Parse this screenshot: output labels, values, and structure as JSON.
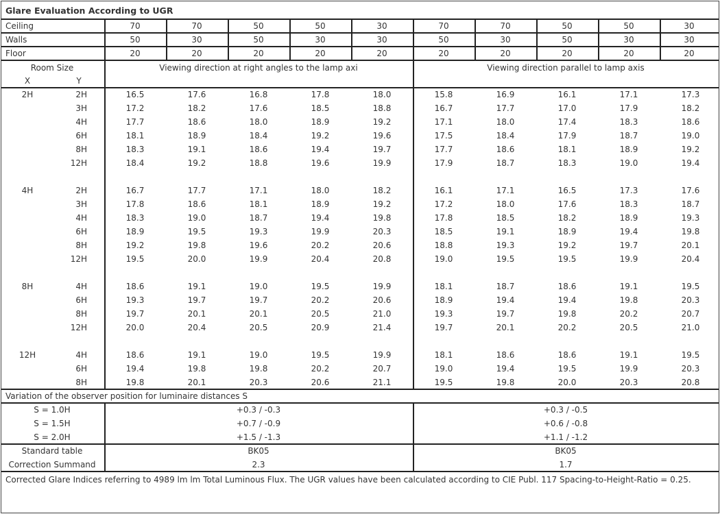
{
  "title": "Glare Evaluation According to UGR",
  "reflectances": {
    "ceiling": {
      "label": "Ceiling",
      "values": [
        "70",
        "70",
        "50",
        "50",
        "30",
        "70",
        "70",
        "50",
        "50",
        "30"
      ]
    },
    "walls": {
      "label": "Walls",
      "values": [
        "50",
        "30",
        "50",
        "30",
        "30",
        "50",
        "30",
        "50",
        "30",
        "30"
      ]
    },
    "floor": {
      "label": "Floor",
      "values": [
        "20",
        "20",
        "20",
        "20",
        "20",
        "20",
        "20",
        "20",
        "20",
        "20"
      ]
    }
  },
  "header": {
    "room_size": "Room Size",
    "x": "X",
    "y": "Y",
    "perpendicular": "Viewing direction at right angles to the lamp axi",
    "parallel": "Viewing direction parallel to lamp axis"
  },
  "groups": [
    {
      "x": "2H",
      "rows": [
        {
          "y": "2H",
          "perp": [
            "16.5",
            "17.6",
            "16.8",
            "17.8",
            "18.0"
          ],
          "para": [
            "15.8",
            "16.9",
            "16.1",
            "17.1",
            "17.3"
          ]
        },
        {
          "y": "3H",
          "perp": [
            "17.2",
            "18.2",
            "17.6",
            "18.5",
            "18.8"
          ],
          "para": [
            "16.7",
            "17.7",
            "17.0",
            "17.9",
            "18.2"
          ]
        },
        {
          "y": "4H",
          "perp": [
            "17.7",
            "18.6",
            "18.0",
            "18.9",
            "19.2"
          ],
          "para": [
            "17.1",
            "18.0",
            "17.4",
            "18.3",
            "18.6"
          ]
        },
        {
          "y": "6H",
          "perp": [
            "18.1",
            "18.9",
            "18.4",
            "19.2",
            "19.6"
          ],
          "para": [
            "17.5",
            "18.4",
            "17.9",
            "18.7",
            "19.0"
          ]
        },
        {
          "y": "8H",
          "perp": [
            "18.3",
            "19.1",
            "18.6",
            "19.4",
            "19.7"
          ],
          "para": [
            "17.7",
            "18.6",
            "18.1",
            "18.9",
            "19.2"
          ]
        },
        {
          "y": "12H",
          "perp": [
            "18.4",
            "19.2",
            "18.8",
            "19.6",
            "19.9"
          ],
          "para": [
            "17.9",
            "18.7",
            "18.3",
            "19.0",
            "19.4"
          ]
        }
      ]
    },
    {
      "x": "4H",
      "rows": [
        {
          "y": "2H",
          "perp": [
            "16.7",
            "17.7",
            "17.1",
            "18.0",
            "18.2"
          ],
          "para": [
            "16.1",
            "17.1",
            "16.5",
            "17.3",
            "17.6"
          ]
        },
        {
          "y": "3H",
          "perp": [
            "17.8",
            "18.6",
            "18.1",
            "18.9",
            "19.2"
          ],
          "para": [
            "17.2",
            "18.0",
            "17.6",
            "18.3",
            "18.7"
          ]
        },
        {
          "y": "4H",
          "perp": [
            "18.3",
            "19.0",
            "18.7",
            "19.4",
            "19.8"
          ],
          "para": [
            "17.8",
            "18.5",
            "18.2",
            "18.9",
            "19.3"
          ]
        },
        {
          "y": "6H",
          "perp": [
            "18.9",
            "19.5",
            "19.3",
            "19.9",
            "20.3"
          ],
          "para": [
            "18.5",
            "19.1",
            "18.9",
            "19.4",
            "19.8"
          ]
        },
        {
          "y": "8H",
          "perp": [
            "19.2",
            "19.8",
            "19.6",
            "20.2",
            "20.6"
          ],
          "para": [
            "18.8",
            "19.3",
            "19.2",
            "19.7",
            "20.1"
          ]
        },
        {
          "y": "12H",
          "perp": [
            "19.5",
            "20.0",
            "19.9",
            "20.4",
            "20.8"
          ],
          "para": [
            "19.0",
            "19.5",
            "19.5",
            "19.9",
            "20.4"
          ]
        }
      ]
    },
    {
      "x": "8H",
      "rows": [
        {
          "y": "4H",
          "perp": [
            "18.6",
            "19.1",
            "19.0",
            "19.5",
            "19.9"
          ],
          "para": [
            "18.1",
            "18.7",
            "18.6",
            "19.1",
            "19.5"
          ]
        },
        {
          "y": "6H",
          "perp": [
            "19.3",
            "19.7",
            "19.7",
            "20.2",
            "20.6"
          ],
          "para": [
            "18.9",
            "19.4",
            "19.4",
            "19.8",
            "20.3"
          ]
        },
        {
          "y": "8H",
          "perp": [
            "19.7",
            "20.1",
            "20.1",
            "20.5",
            "21.0"
          ],
          "para": [
            "19.3",
            "19.7",
            "19.8",
            "20.2",
            "20.7"
          ]
        },
        {
          "y": "12H",
          "perp": [
            "20.0",
            "20.4",
            "20.5",
            "20.9",
            "21.4"
          ],
          "para": [
            "19.7",
            "20.1",
            "20.2",
            "20.5",
            "21.0"
          ]
        }
      ]
    },
    {
      "x": "12H",
      "rows": [
        {
          "y": "4H",
          "perp": [
            "18.6",
            "19.1",
            "19.0",
            "19.5",
            "19.9"
          ],
          "para": [
            "18.1",
            "18.6",
            "18.6",
            "19.1",
            "19.5"
          ]
        },
        {
          "y": "6H",
          "perp": [
            "19.4",
            "19.8",
            "19.8",
            "20.2",
            "20.7"
          ],
          "para": [
            "19.0",
            "19.4",
            "19.5",
            "19.9",
            "20.3"
          ]
        },
        {
          "y": "8H",
          "perp": [
            "19.8",
            "20.1",
            "20.3",
            "20.6",
            "21.1"
          ],
          "para": [
            "19.5",
            "19.8",
            "20.0",
            "20.3",
            "20.8"
          ]
        }
      ]
    }
  ],
  "variation": {
    "title": "Variation of the observer position for luminaire distances S",
    "rows": [
      {
        "label": "S = 1.0H",
        "perp": "+0.3 / -0.3",
        "para": "+0.3 / -0.5"
      },
      {
        "label": "S = 1.5H",
        "perp": "+0.7 / -0.9",
        "para": "+0.6 / -0.8"
      },
      {
        "label": "S = 2.0H",
        "perp": "+1.5 / -1.3",
        "para": "+1.1 / -1.2"
      }
    ]
  },
  "standard_table": {
    "label": "Standard table",
    "perp": "BK05",
    "para": "BK05"
  },
  "correction_summand": {
    "label": "Correction Summand",
    "perp": "2.3",
    "para": "1.7"
  },
  "footer": "Corrected Glare Indices referring to 4989 lm lm Total Luminous Flux. The UGR values have been calculated according to CIE Publ. 117    Spacing-to-Height-Ratio = 0.25."
}
